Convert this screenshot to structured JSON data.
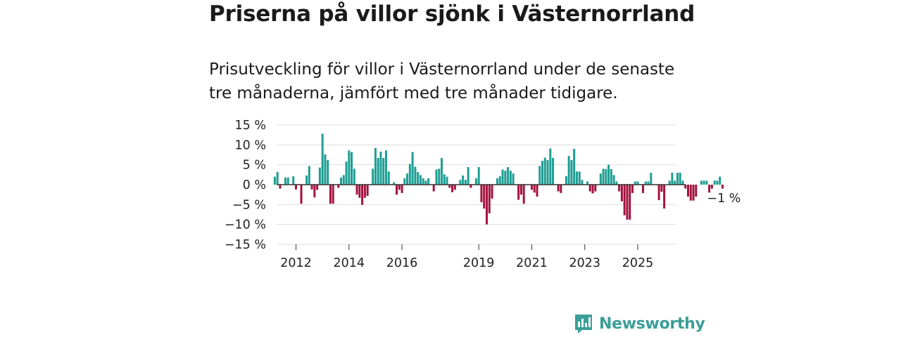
{
  "title": "Priserna på villor sjönk i Västernorrland",
  "subtitle": "Prisutveckling för villor i Västernorrland under de senaste tre månaderna, jämfört med tre månader tidigare.",
  "logo": {
    "text": "Newsworthy",
    "icon": "newsworthy-chart-icon"
  },
  "colors": {
    "positive": "#1f9e94",
    "negative": "#a3123f",
    "grid": "#dddddd",
    "zero": "#333333",
    "brand": "#3a9e98"
  },
  "chart_data": {
    "type": "bar",
    "title": "Priserna på villor sjönk i Västernorrland",
    "xlabel": "",
    "ylabel": "",
    "unit": "%",
    "ylim": [
      -15,
      15
    ],
    "yticks": [
      {
        "value": 15,
        "label": "15 %"
      },
      {
        "value": 10,
        "label": "10 %"
      },
      {
        "value": 5,
        "label": "5 %"
      },
      {
        "value": 0,
        "label": "0 %"
      },
      {
        "value": -5,
        "label": "−5 %"
      },
      {
        "value": -10,
        "label": "−10 %"
      },
      {
        "value": -15,
        "label": "−15 %"
      }
    ],
    "xticks": [
      {
        "index": 0,
        "label": "2012"
      },
      {
        "index": 20,
        "label": "2014"
      },
      {
        "index": 40,
        "label": "2016"
      },
      {
        "index": 69,
        "label": "2019"
      },
      {
        "index": 89,
        "label": "2021"
      },
      {
        "index": 109,
        "label": "2023"
      },
      {
        "index": 129,
        "label": "2025"
      }
    ],
    "x_start_index": -8,
    "x_end_index": 147,
    "last_label": "−1 %",
    "values": [
      2,
      3.2,
      -1,
      0,
      1.8,
      1.8,
      0,
      2.1,
      -1.2,
      0,
      -4.8,
      0,
      2.3,
      4.7,
      -1.2,
      -3.2,
      -1.3,
      4.3,
      12.8,
      7.6,
      6.2,
      -4.8,
      -4.8,
      0,
      -0.8,
      1.8,
      2.4,
      5.8,
      8.6,
      8.2,
      4,
      -2.5,
      -3.3,
      -5.1,
      -3.3,
      -2.8,
      0,
      4,
      9.2,
      6.7,
      8.3,
      6.7,
      8.6,
      3.3,
      0,
      0.6,
      -2.5,
      -1.3,
      -2.1,
      1.6,
      2.8,
      5.2,
      8.2,
      4.5,
      3.2,
      2.4,
      1.6,
      1,
      1.6,
      0,
      -1.7,
      3.8,
      4,
      6.7,
      2.6,
      2,
      -0.8,
      -1.9,
      -1.3,
      0,
      1.2,
      2.3,
      1.2,
      4.4,
      -0.8,
      0,
      1.6,
      4.4,
      -4.4,
      -6,
      -10,
      -7.2,
      -3.5,
      0,
      1.6,
      2.1,
      3.8,
      3.5,
      4.4,
      3.5,
      2.8,
      0,
      -3.8,
      -2.5,
      -4.8,
      0,
      0,
      -1.3,
      -2,
      -3,
      4.7,
      6,
      6.8,
      6.2,
      9.1,
      6.7,
      0,
      -1.7,
      -2.1,
      0,
      2.1,
      7.2,
      6.2,
      9,
      3.3,
      3.3,
      1.2,
      0,
      0.8,
      -1.7,
      -2.2,
      -1.7,
      0,
      2.8,
      4,
      3.9,
      5,
      3.9,
      2.4,
      0.8,
      -1.7,
      -4.2,
      -7.7,
      -8.8,
      -8.8,
      -2.1,
      0.8,
      0.8,
      0,
      -2.1,
      0.8,
      0.8,
      3,
      0,
      0,
      -3.9,
      -1.8,
      -6,
      0,
      1,
      3,
      1,
      3,
      3,
      1,
      -1,
      -3,
      -4,
      -4,
      -3,
      0,
      1,
      1,
      1,
      -2,
      -1,
      1,
      1,
      2,
      -1
    ]
  }
}
